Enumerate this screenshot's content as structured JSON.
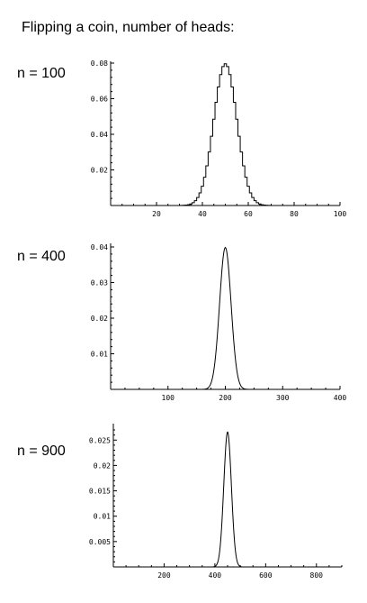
{
  "title": "Flipping a coin, number of heads:",
  "chart_data": [
    {
      "type": "area",
      "label": "n = 100",
      "n": 100,
      "distribution": "binomial(n, 0.5)",
      "render": "step",
      "xlim": [
        0,
        100
      ],
      "ylim": [
        0,
        0.08
      ],
      "xticks": [
        20,
        40,
        60,
        80,
        100
      ],
      "yticks": [
        0.02,
        0.04,
        0.06,
        0.08
      ],
      "xtick_labels": [
        "20",
        "40",
        "60",
        "80",
        "100"
      ],
      "ytick_labels": [
        "0.02",
        "0.04",
        "0.06",
        "0.08"
      ],
      "peak": {
        "x": 50,
        "y": 0.0796
      }
    },
    {
      "type": "line",
      "label": "n = 400",
      "n": 400,
      "distribution": "binomial(n, 0.5)",
      "render": "smooth",
      "xlim": [
        0,
        400
      ],
      "ylim": [
        0,
        0.04
      ],
      "xticks": [
        100,
        200,
        300,
        400
      ],
      "yticks": [
        0.01,
        0.02,
        0.03,
        0.04
      ],
      "xtick_labels": [
        "100",
        "200",
        "300",
        "400"
      ],
      "ytick_labels": [
        "0.01",
        "0.02",
        "0.03",
        "0.04"
      ],
      "peak": {
        "x": 200,
        "y": 0.0399
      }
    },
    {
      "type": "line",
      "label": "n = 900",
      "n": 900,
      "distribution": "binomial(n, 0.5)",
      "render": "smooth",
      "xlim": [
        0,
        900
      ],
      "ylim": [
        0,
        0.027
      ],
      "xticks": [
        200,
        400,
        600,
        800
      ],
      "yticks": [
        0.005,
        0.01,
        0.015,
        0.02,
        0.025
      ],
      "xtick_labels": [
        "200",
        "400",
        "600",
        "800"
      ],
      "ytick_labels": [
        "0.005",
        "0.01",
        "0.015",
        "0.02",
        "0.025"
      ],
      "peak": {
        "x": 450,
        "y": 0.0266
      }
    }
  ]
}
